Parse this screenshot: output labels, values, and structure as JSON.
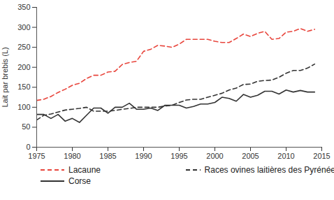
{
  "chart_data": {
    "type": "line",
    "y_label": "Lait par brebis (L)",
    "x": [
      1975,
      1976,
      1977,
      1978,
      1979,
      1980,
      1981,
      1982,
      1983,
      1984,
      1985,
      1986,
      1987,
      1988,
      1989,
      1990,
      1991,
      1992,
      1993,
      1994,
      1995,
      1996,
      1997,
      1998,
      1999,
      2000,
      2001,
      2002,
      2003,
      2004,
      2005,
      2006,
      2007,
      2008,
      2009,
      2010,
      2011,
      2012,
      2013,
      2014
    ],
    "series": [
      {
        "name": "Lacaune",
        "color": "#e8453c",
        "line_style": "dashed",
        "values": [
          117,
          120,
          127,
          137,
          145,
          155,
          160,
          172,
          180,
          180,
          188,
          190,
          207,
          212,
          215,
          240,
          245,
          255,
          253,
          250,
          258,
          270,
          270,
          270,
          270,
          265,
          262,
          262,
          272,
          283,
          277,
          285,
          290,
          270,
          272,
          288,
          290,
          297,
          290,
          295
        ]
      },
      {
        "name": "Races ovines laitières des Pyrénées",
        "color": "#333333",
        "line_style": "dashed",
        "values": [
          68,
          80,
          83,
          88,
          93,
          95,
          97,
          100,
          90,
          90,
          90,
          92,
          95,
          97,
          100,
          100,
          100,
          100,
          103,
          105,
          112,
          118,
          120,
          120,
          125,
          130,
          135,
          143,
          148,
          157,
          158,
          165,
          167,
          168,
          175,
          185,
          192,
          192,
          198,
          208
        ]
      },
      {
        "name": "Corse",
        "color": "#333333",
        "line_style": "solid",
        "values": [
          82,
          82,
          72,
          82,
          65,
          72,
          62,
          80,
          98,
          98,
          85,
          100,
          100,
          110,
          95,
          95,
          98,
          92,
          105,
          105,
          105,
          98,
          102,
          108,
          108,
          112,
          125,
          122,
          115,
          132,
          125,
          130,
          140,
          140,
          133,
          143,
          138,
          142,
          138,
          138
        ]
      }
    ],
    "xlim": [
      1975,
      2015
    ],
    "xticks": [
      1975,
      1980,
      1985,
      1990,
      1995,
      2000,
      2005,
      2010,
      2015
    ],
    "ylim": [
      0,
      350
    ],
    "yticks": [
      0,
      50,
      100,
      150,
      200,
      250,
      300,
      350
    ],
    "grid": false
  }
}
